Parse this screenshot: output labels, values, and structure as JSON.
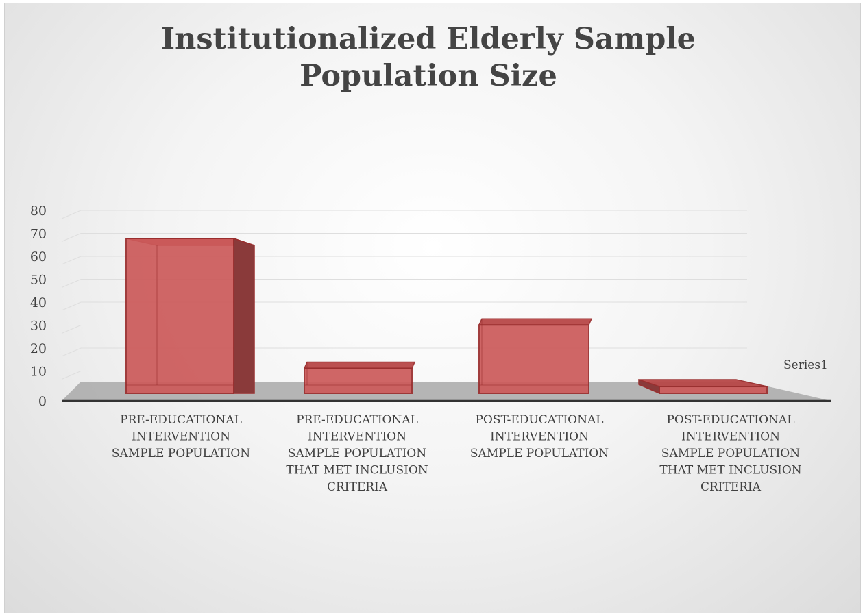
{
  "chart_data": {
    "type": "bar",
    "title": "Institutionalized Elderly Sample Population Size",
    "categories": [
      [
        "PRE-EDUCATIONAL",
        "INTERVENTION",
        "SAMPLE POPULATION"
      ],
      [
        "PRE-EDUCATIONAL",
        "INTERVENTION",
        "SAMPLE POPULATION",
        "THAT MET INCLUSION",
        "CRITERIA"
      ],
      [
        "POST-EDUCATIONAL",
        "INTERVENTION",
        "SAMPLE POPULATION"
      ],
      [
        "POST-EDUCATIONAL",
        "INTERVENTION",
        "SAMPLE POPULATION",
        "THAT MET INCLUSION",
        "CRITERIA"
      ]
    ],
    "series": [
      {
        "name": "Series1",
        "values": [
          68,
          11,
          30,
          3
        ]
      }
    ],
    "ylim": [
      0,
      80
    ],
    "yticks": [
      0,
      10,
      20,
      30,
      40,
      50,
      60,
      70,
      80
    ],
    "grid": true,
    "style": "3d-column",
    "legend_position": "right",
    "colors": {
      "bar_front": "#cc5a5a",
      "bar_side": "#8a3a3a",
      "bar_top": "#b84848",
      "bar_edge": "#9a2e2e",
      "floor": "#a9a9a9",
      "axis": "#333333",
      "grid": "#dedede"
    }
  }
}
